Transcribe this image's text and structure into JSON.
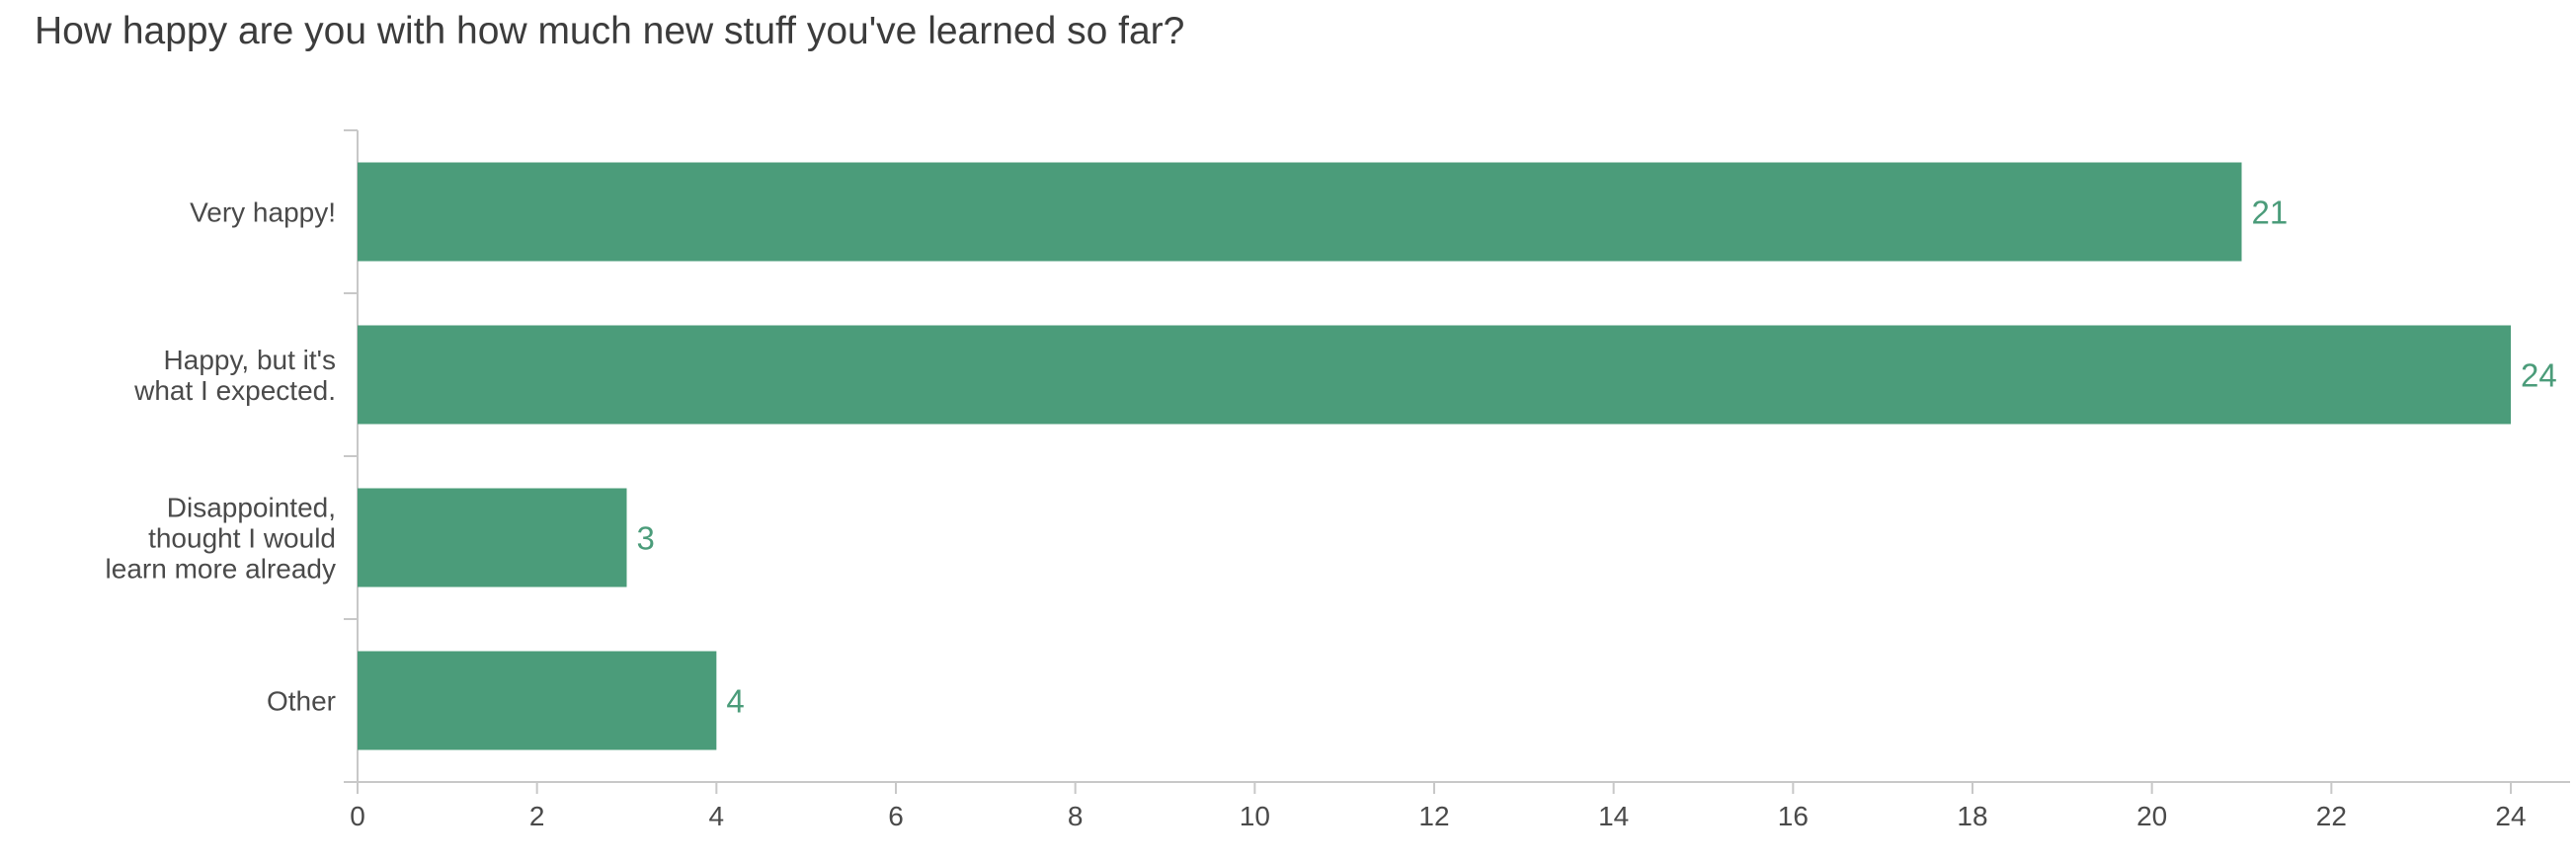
{
  "title": "How happy are you with how much new stuff you've learned so far?",
  "colors": {
    "bar": "#4b9c7a",
    "axis": "#c8c8c8",
    "text": "#4a4a4a",
    "title": "#3c3c3c"
  },
  "chart_data": {
    "type": "bar",
    "orientation": "horizontal",
    "title": "How happy are you with how much new stuff you've learned so far?",
    "categories": [
      [
        "Very happy!"
      ],
      [
        "Happy, but it's",
        "what I expected."
      ],
      [
        "Disappointed,",
        "thought I would",
        "learn more already"
      ],
      [
        "Other"
      ]
    ],
    "values": [
      21,
      24,
      3,
      4
    ],
    "xlim": [
      0,
      24
    ],
    "x_ticks": [
      0,
      2,
      4,
      6,
      8,
      10,
      12,
      14,
      16,
      18,
      20,
      22,
      24
    ],
    "xlabel": "",
    "ylabel": "",
    "grid": false,
    "data_labels": true
  }
}
